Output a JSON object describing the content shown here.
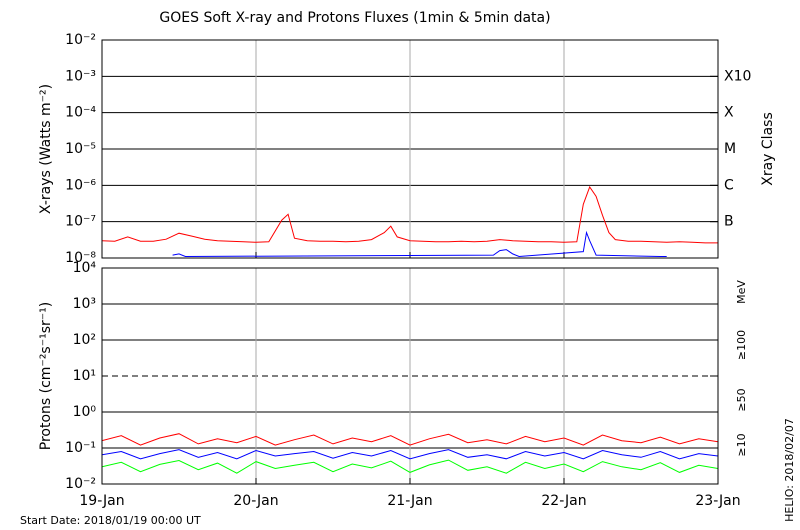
{
  "chart_data": [
    {
      "type": "line",
      "title": "GOES Soft X-ray and Protons Fluxes   (1min & 5min data)",
      "ylabel": "X-rays (Watts m⁻²)",
      "log_y": true,
      "grid": true,
      "xlim": [
        0,
        96
      ],
      "xticks": [
        0,
        24,
        48,
        72,
        96
      ],
      "ylim": [
        1e-08,
        0.01
      ],
      "yticks": [
        {
          "value": 1e-08,
          "label": "10⁻⁸"
        },
        {
          "value": 1e-07,
          "label": "10⁻⁷"
        },
        {
          "value": 1e-06,
          "label": "10⁻⁶"
        },
        {
          "value": 1e-05,
          "label": "10⁻⁵"
        },
        {
          "value": 0.0001,
          "label": "10⁻⁴"
        },
        {
          "value": 0.001,
          "label": "10⁻³"
        },
        {
          "value": 0.01,
          "label": "10⁻²"
        }
      ],
      "class_axis_label": "Xray Class",
      "classes": [
        {
          "value": 0.001,
          "label": "X10"
        },
        {
          "value": 0.0001,
          "label": "X"
        },
        {
          "value": 1e-05,
          "label": "M"
        },
        {
          "value": 1e-06,
          "label": "C"
        },
        {
          "value": 1e-07,
          "label": "B"
        }
      ],
      "series": [
        {
          "color": "#ff0000",
          "x": [
            0,
            2,
            4,
            6,
            8,
            10,
            12,
            14,
            16,
            18,
            20,
            22,
            24,
            26,
            28,
            29,
            30,
            32,
            34,
            36,
            38,
            40,
            42,
            44,
            45,
            46,
            48,
            50,
            52,
            54,
            56,
            58,
            60,
            62,
            64,
            66,
            68,
            70,
            72,
            74,
            75,
            76,
            77,
            78,
            79,
            80,
            82,
            84,
            86,
            88,
            90,
            92,
            94,
            96
          ],
          "values": [
            3e-08,
            2.9e-08,
            3.8e-08,
            2.9e-08,
            2.9e-08,
            3.3e-08,
            4.8e-08,
            4e-08,
            3.3e-08,
            3e-08,
            2.9e-08,
            2.8e-08,
            2.7e-08,
            2.8e-08,
            1.1e-07,
            1.6e-07,
            3.5e-08,
            3e-08,
            2.9e-08,
            2.9e-08,
            2.8e-08,
            2.9e-08,
            3.2e-08,
            5e-08,
            7.5e-08,
            3.8e-08,
            3e-08,
            2.9e-08,
            2.8e-08,
            2.8e-08,
            2.9e-08,
            2.8e-08,
            2.9e-08,
            3.2e-08,
            3e-08,
            2.9e-08,
            2.8e-08,
            2.8e-08,
            2.7e-08,
            2.8e-08,
            3e-07,
            9e-07,
            5e-07,
            1.5e-07,
            5e-08,
            3.2e-08,
            2.9e-08,
            2.9e-08,
            2.8e-08,
            2.7e-08,
            2.8e-08,
            2.7e-08,
            2.6e-08,
            2.6e-08
          ]
        },
        {
          "color": "#0000ff",
          "x": [
            11,
            12,
            13,
            61,
            62,
            63,
            64,
            65,
            75,
            75.5,
            76,
            77,
            87,
            88
          ],
          "values": [
            1.2e-08,
            1.3e-08,
            1.1e-08,
            1.2e-08,
            1.6e-08,
            1.7e-08,
            1.3e-08,
            1.1e-08,
            1.5e-08,
            5e-08,
            3e-08,
            1.2e-08,
            1.1e-08,
            1.1e-08
          ]
        }
      ]
    },
    {
      "type": "line",
      "ylabel": "Protons (cm⁻²s⁻¹sr⁻¹)",
      "log_y": true,
      "grid": true,
      "xlim": [
        0,
        96
      ],
      "xticks": [
        {
          "value": 0,
          "label": "19-Jan"
        },
        {
          "value": 24,
          "label": "20-Jan"
        },
        {
          "value": 48,
          "label": "21-Jan"
        },
        {
          "value": 72,
          "label": "22-Jan"
        },
        {
          "value": 96,
          "label": "23-Jan"
        }
      ],
      "ylim": [
        0.01,
        10000
      ],
      "yticks": [
        {
          "value": 0.01,
          "label": "10⁻²"
        },
        {
          "value": 0.1,
          "label": "10⁻¹"
        },
        {
          "value": 1,
          "label": "10⁰"
        },
        {
          "value": 10,
          "label": "10¹"
        },
        {
          "value": 100,
          "label": "10²"
        },
        {
          "value": 1000,
          "label": "10³"
        },
        {
          "value": 10000,
          "label": "10⁴"
        }
      ],
      "dashed_line": 10,
      "legend_unit": "MeV",
      "x": [
        0,
        3,
        6,
        9,
        12,
        15,
        18,
        21,
        24,
        27,
        30,
        33,
        36,
        39,
        42,
        45,
        48,
        51,
        54,
        57,
        60,
        63,
        66,
        69,
        72,
        75,
        78,
        81,
        84,
        87,
        90,
        93,
        96
      ],
      "series": [
        {
          "name": "≥100",
          "color": "#00ff00",
          "values": [
            0.03,
            0.04,
            0.022,
            0.035,
            0.045,
            0.025,
            0.038,
            0.02,
            0.042,
            0.027,
            0.033,
            0.04,
            0.022,
            0.036,
            0.028,
            0.043,
            0.021,
            0.034,
            0.046,
            0.024,
            0.03,
            0.02,
            0.04,
            0.027,
            0.036,
            0.022,
            0.042,
            0.03,
            0.025,
            0.039,
            0.021,
            0.033,
            0.027
          ]
        },
        {
          "name": "≥50",
          "color": "#0000ff",
          "values": [
            0.065,
            0.08,
            0.05,
            0.07,
            0.09,
            0.055,
            0.075,
            0.05,
            0.085,
            0.06,
            0.07,
            0.08,
            0.052,
            0.075,
            0.06,
            0.085,
            0.05,
            0.07,
            0.09,
            0.055,
            0.065,
            0.05,
            0.08,
            0.06,
            0.075,
            0.05,
            0.085,
            0.065,
            0.055,
            0.08,
            0.05,
            0.07,
            0.06
          ]
        },
        {
          "name": "≥10",
          "color": "#ff0000",
          "values": [
            0.16,
            0.22,
            0.12,
            0.19,
            0.25,
            0.13,
            0.18,
            0.14,
            0.21,
            0.12,
            0.17,
            0.23,
            0.13,
            0.19,
            0.15,
            0.22,
            0.12,
            0.18,
            0.24,
            0.14,
            0.17,
            0.13,
            0.21,
            0.15,
            0.19,
            0.12,
            0.23,
            0.16,
            0.14,
            0.2,
            0.13,
            0.18,
            0.15
          ]
        }
      ]
    }
  ],
  "footer": {
    "start_date": "Start Date: 2018/01/19 00:00 UT",
    "helio": "HELIO: 2018/02/07"
  }
}
